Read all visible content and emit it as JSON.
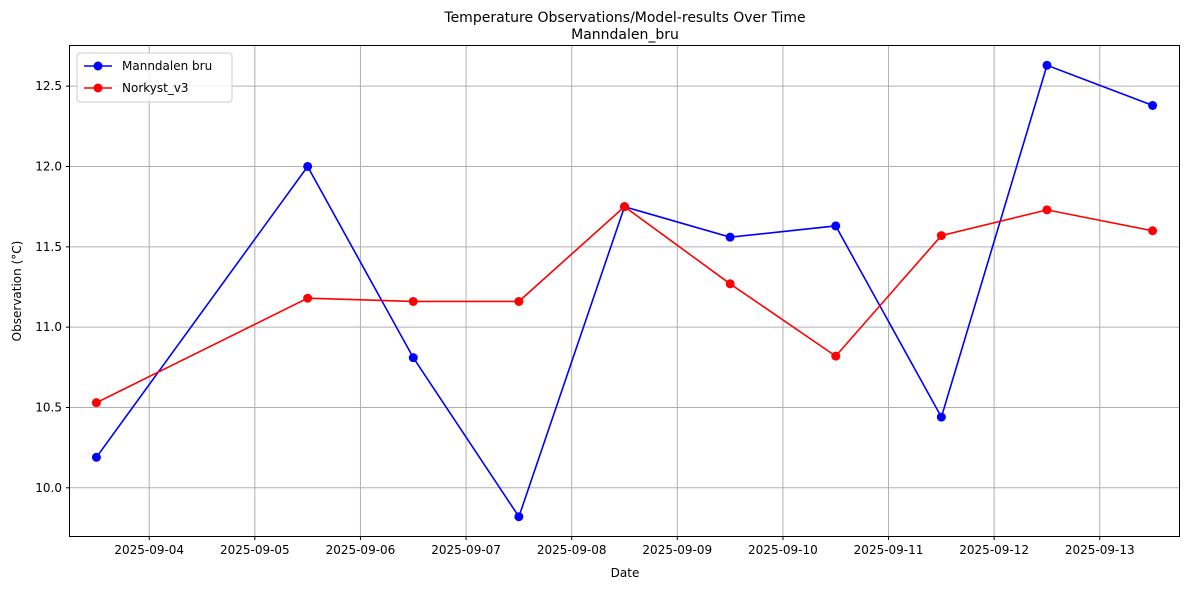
{
  "chart_data": {
    "type": "line",
    "title": "Temperature Observations/Model-results Over Time",
    "subtitle": "Manndalen_bru",
    "xlabel": "Date",
    "ylabel": "Observation (°C)",
    "x": [
      "2025-09-03 12:00",
      "2025-09-05 12:00",
      "2025-09-06 12:00",
      "2025-09-07 12:00",
      "2025-09-08 12:00",
      "2025-09-09 12:00",
      "2025-09-10 12:00",
      "2025-09-11 12:00",
      "2025-09-12 12:00",
      "2025-09-13 12:00"
    ],
    "xlim": [
      "2025-09-03 06:00",
      "2025-09-13 18:00"
    ],
    "xticks": [
      "2025-09-04",
      "2025-09-05",
      "2025-09-06",
      "2025-09-07",
      "2025-09-08",
      "2025-09-09",
      "2025-09-10",
      "2025-09-11",
      "2025-09-12",
      "2025-09-13"
    ],
    "ylim": [
      9.7,
      12.75
    ],
    "yticks": [
      10.0,
      10.5,
      11.0,
      11.5,
      12.0,
      12.5
    ],
    "ytick_labels": [
      "10.0",
      "10.5",
      "11.0",
      "11.5",
      "12.0",
      "12.5"
    ],
    "grid": true,
    "legend_position": "top-left",
    "series": [
      {
        "name": "Manndalen bru",
        "color": "#0000ff",
        "values": [
          10.19,
          12.0,
          10.81,
          9.82,
          11.75,
          11.56,
          11.63,
          10.44,
          12.63,
          12.38
        ]
      },
      {
        "name": "Norkyst_v3",
        "color": "#ff0000",
        "values": [
          10.53,
          11.18,
          11.16,
          11.16,
          11.75,
          11.27,
          10.82,
          11.57,
          11.73,
          11.6
        ]
      }
    ]
  }
}
